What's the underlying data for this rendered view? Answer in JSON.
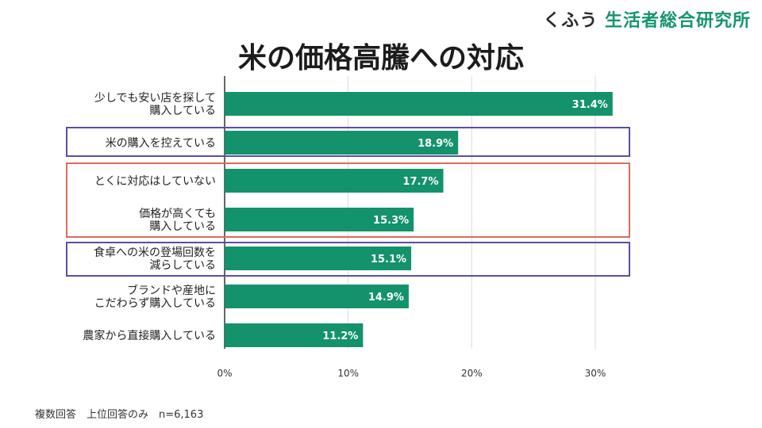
{
  "brand": {
    "prefix": "くふう",
    "name": "生活者総合研究所"
  },
  "footnote": "複数回答　上位回答のみ　n=6,163",
  "chart_data": {
    "type": "bar",
    "orientation": "horizontal",
    "title": "米の価格高騰への対応",
    "categories": [
      [
        "少しでも安い店を探して",
        "購入している"
      ],
      [
        "米の購入を控えている"
      ],
      [
        "とくに対応はしていない"
      ],
      [
        "価格が高くても",
        "購入している"
      ],
      [
        "食卓への米の登場回数を",
        "減らしている"
      ],
      [
        "ブランドや産地に",
        "こだわらず購入している"
      ],
      [
        "農家から直接購入している"
      ]
    ],
    "values": [
      31.4,
      18.9,
      17.7,
      15.3,
      15.1,
      14.9,
      11.2
    ],
    "value_labels": [
      "31.4%",
      "18.9%",
      "17.7%",
      "15.3%",
      "15.1%",
      "14.9%",
      "11.2%"
    ],
    "xlim": [
      0,
      32
    ],
    "ticks": [
      0,
      10,
      20,
      30
    ],
    "tick_labels": [
      "0%",
      "10%",
      "20%",
      "30%"
    ],
    "bar_color": "#13926b",
    "grid": true,
    "highlight_color_purple": "#5b4fa3",
    "highlight_color_red": "#dd6b5c"
  }
}
